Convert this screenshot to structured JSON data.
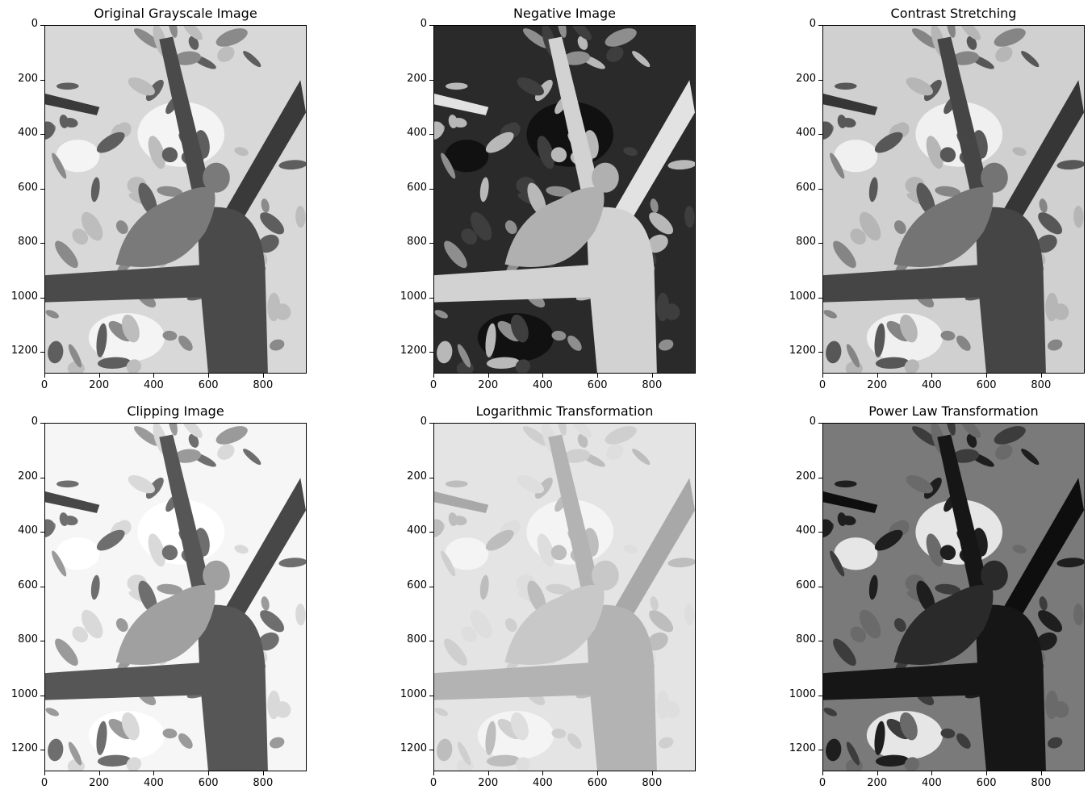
{
  "figure": {
    "panels": [
      {
        "title": "Original Grayscale Image",
        "style": "original",
        "xticks": [
          "0",
          "200",
          "400",
          "600",
          "800"
        ],
        "yticks": [
          "0",
          "200",
          "400",
          "600",
          "800",
          "1000",
          "1200"
        ]
      },
      {
        "title": "Negative Image",
        "style": "negative",
        "xticks": [
          "0",
          "200",
          "400",
          "600",
          "800"
        ],
        "yticks": [
          "0",
          "200",
          "400",
          "600",
          "800",
          "1000",
          "1200"
        ]
      },
      {
        "title": "Contrast Stretching",
        "style": "contrast",
        "xticks": [
          "0",
          "200",
          "400",
          "600",
          "800"
        ],
        "yticks": [
          "0",
          "200",
          "400",
          "600",
          "800",
          "1000",
          "1200"
        ]
      },
      {
        "title": "Clipping Image",
        "style": "clipping",
        "xticks": [
          "0",
          "200",
          "400",
          "600",
          "800"
        ],
        "yticks": [
          "0",
          "200",
          "400",
          "600",
          "800",
          "1000",
          "1200"
        ]
      },
      {
        "title": "Logarithmic Transformation",
        "style": "log",
        "xticks": [
          "0",
          "200",
          "400",
          "600",
          "800"
        ],
        "yticks": [
          "0",
          "200",
          "400",
          "600",
          "800",
          "1000",
          "1200"
        ]
      },
      {
        "title": "Power Law Transformation",
        "style": "power",
        "xticks": [
          "0",
          "200",
          "400",
          "600",
          "800"
        ],
        "yticks": [
          "0",
          "200",
          "400",
          "600",
          "800",
          "1000",
          "1200"
        ]
      }
    ],
    "tick_values_x": [
      0,
      200,
      400,
      600,
      800
    ],
    "tick_values_y": [
      0,
      200,
      400,
      600,
      800,
      1000,
      1200
    ],
    "image_extent": {
      "width": 960,
      "height": 1280
    }
  }
}
